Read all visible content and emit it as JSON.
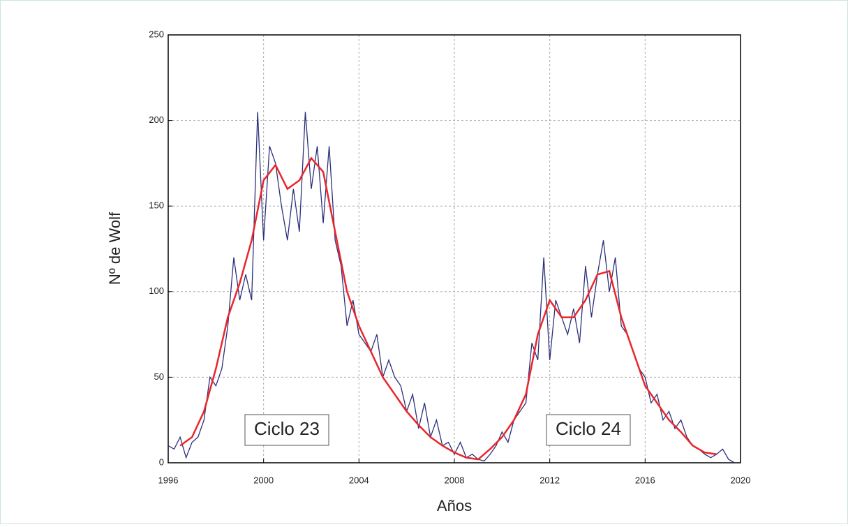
{
  "chart_data": {
    "type": "line",
    "xlabel": "Años",
    "ylabel": "Nº de Wolf",
    "xlim": [
      1996,
      2020
    ],
    "xticks": [
      1996,
      2000,
      2004,
      2008,
      2012,
      2016,
      2020
    ],
    "ylim": [
      0,
      250
    ],
    "yticks": [
      0,
      50,
      100,
      150,
      200,
      250
    ],
    "grid": true,
    "annotations": [
      "Ciclo 23",
      "Ciclo 24"
    ],
    "series": [
      {
        "color": "#2b2f7a",
        "x": [
          1996,
          1996.25,
          1996.5,
          1996.75,
          1997,
          1997.25,
          1997.5,
          1997.75,
          1998,
          1998.25,
          1998.5,
          1998.75,
          1999,
          1999.25,
          1999.5,
          1999.75,
          2000,
          2000.25,
          2000.5,
          2000.75,
          2001,
          2001.25,
          2001.5,
          2001.75,
          2002,
          2002.25,
          2002.5,
          2002.75,
          2003,
          2003.25,
          2003.5,
          2003.75,
          2004,
          2004.25,
          2004.5,
          2004.75,
          2005,
          2005.25,
          2005.5,
          2005.75,
          2006,
          2006.25,
          2006.5,
          2006.75,
          2007,
          2007.25,
          2007.5,
          2007.75,
          2008,
          2008.25,
          2008.5,
          2008.75,
          2009,
          2009.25,
          2009.5,
          2009.75,
          2010,
          2010.25,
          2010.5,
          2010.75,
          2011,
          2011.25,
          2011.5,
          2011.75,
          2012,
          2012.25,
          2012.5,
          2012.75,
          2013,
          2013.25,
          2013.5,
          2013.75,
          2014,
          2014.25,
          2014.5,
          2014.75,
          2015,
          2015.25,
          2015.5,
          2015.75,
          2016,
          2016.25,
          2016.5,
          2016.75,
          2017,
          2017.25,
          2017.5,
          2017.75,
          2018,
          2018.25,
          2018.5,
          2018.75,
          2019,
          2019.25,
          2019.5,
          2019.75
        ],
        "values": [
          10,
          8,
          15,
          3,
          12,
          15,
          25,
          50,
          45,
          55,
          80,
          120,
          95,
          110,
          95,
          205,
          130,
          185,
          175,
          150,
          130,
          160,
          135,
          205,
          160,
          185,
          140,
          185,
          130,
          115,
          80,
          95,
          75,
          70,
          65,
          75,
          50,
          60,
          50,
          45,
          30,
          40,
          20,
          35,
          15,
          25,
          10,
          12,
          5,
          12,
          3,
          5,
          2,
          1,
          5,
          10,
          18,
          12,
          25,
          30,
          35,
          70,
          60,
          120,
          60,
          95,
          85,
          75,
          90,
          70,
          115,
          85,
          110,
          130,
          100,
          120,
          80,
          75,
          65,
          55,
          50,
          35,
          40,
          25,
          30,
          20,
          25,
          15,
          10,
          8,
          5,
          3,
          5,
          8,
          2,
          0
        ]
      },
      {
        "color": "#e8262b",
        "x": [
          1996.5,
          1997,
          1997.5,
          1998,
          1998.5,
          1999,
          1999.5,
          2000,
          2000.5,
          2001,
          2001.5,
          2002,
          2002.5,
          2003,
          2003.5,
          2004,
          2004.5,
          2005,
          2005.5,
          2006,
          2006.5,
          2007,
          2007.5,
          2008,
          2008.5,
          2009,
          2009.5,
          2010,
          2010.5,
          2011,
          2011.5,
          2012,
          2012.5,
          2013,
          2013.5,
          2014,
          2014.5,
          2015,
          2015.5,
          2016,
          2016.5,
          2017,
          2017.5,
          2018,
          2018.5,
          2019
        ],
        "values": [
          10,
          15,
          30,
          55,
          85,
          105,
          130,
          165,
          174,
          160,
          165,
          178,
          170,
          135,
          100,
          80,
          65,
          50,
          40,
          30,
          22,
          15,
          10,
          6,
          3,
          2,
          8,
          15,
          25,
          40,
          75,
          95,
          85,
          85,
          95,
          110,
          112,
          85,
          65,
          45,
          35,
          25,
          18,
          10,
          6,
          5
        ]
      }
    ]
  }
}
